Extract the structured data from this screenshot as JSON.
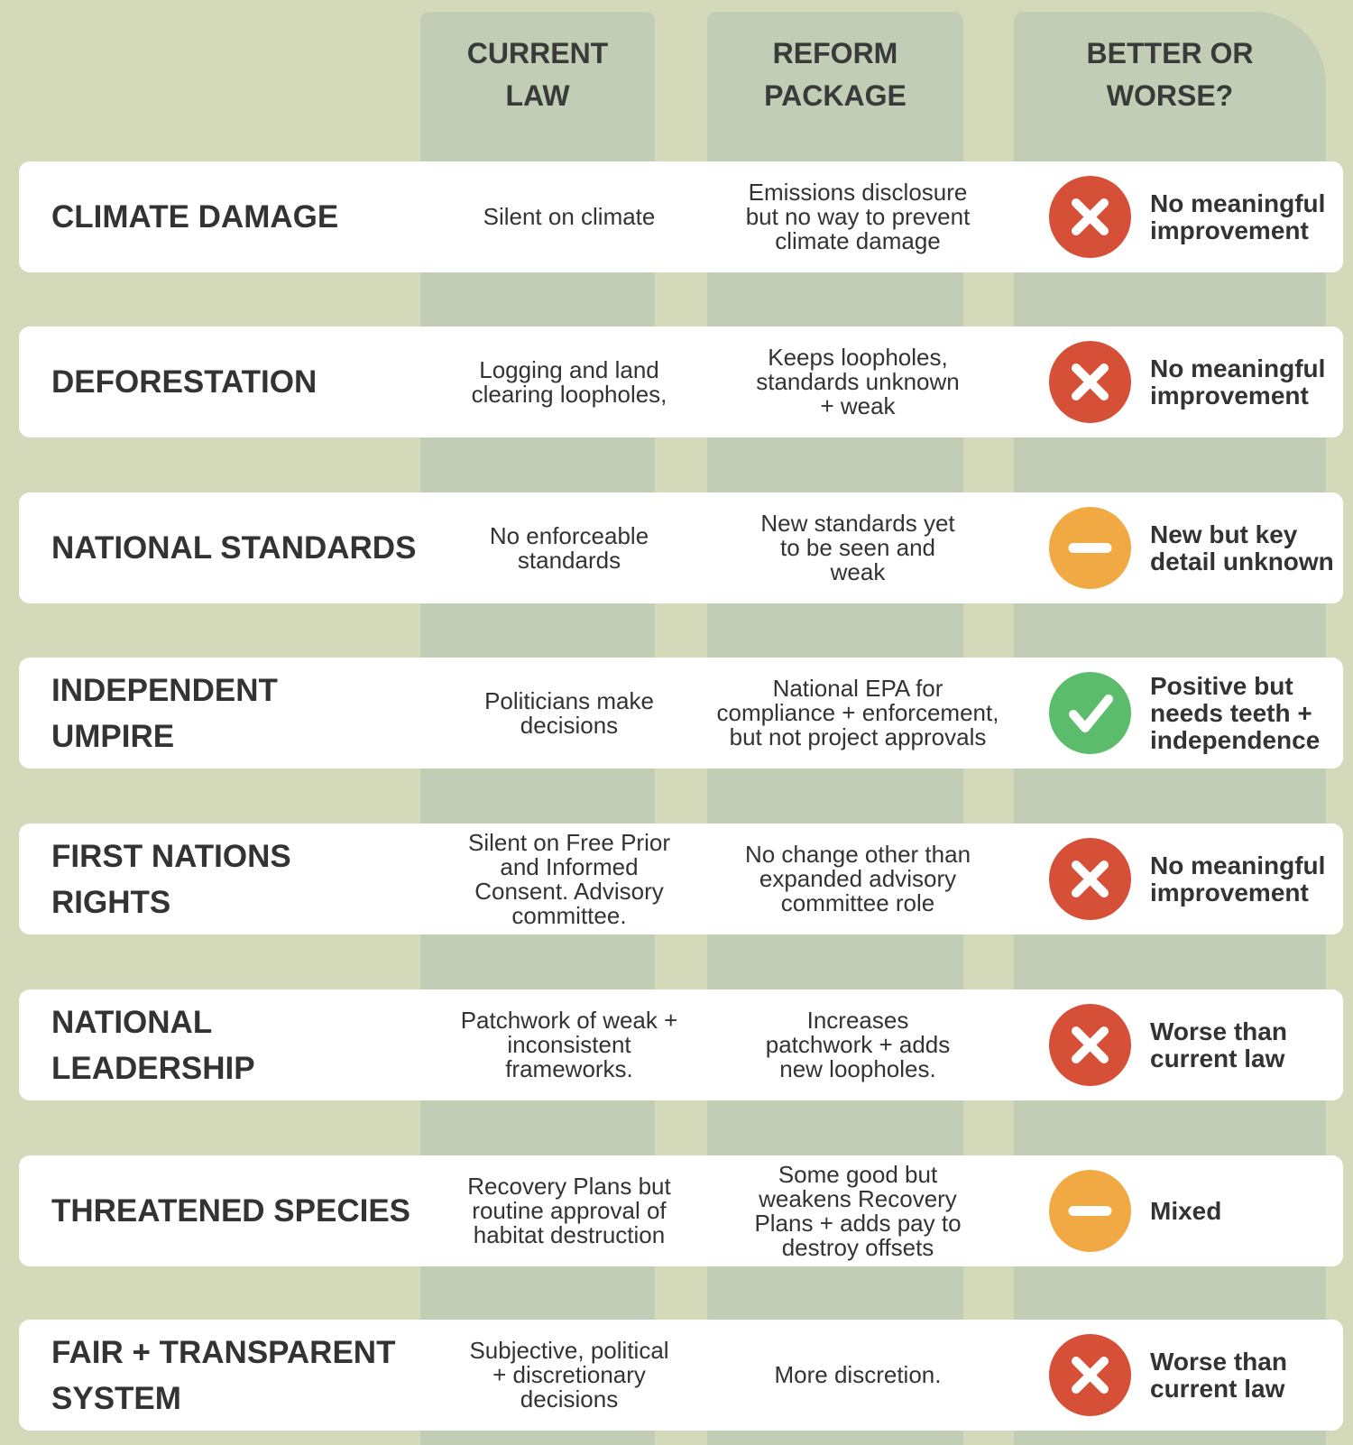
{
  "colors": {
    "background": "#d4d9b9",
    "column": "#c1cdb4",
    "worse": "#d64f37",
    "mixed": "#f0a943",
    "better": "#5bbd6b"
  },
  "headers": {
    "current": "CURRENT\nLAW",
    "reform": "REFORM\nPACKAGE",
    "verdict": "BETTER OR\nWORSE?"
  },
  "rows": [
    {
      "title": "CLIMATE DAMAGE",
      "current": "Silent on climate",
      "reform": "Emissions disclosure\nbut no way to prevent\nclimate damage",
      "icon": "x-circle-icon",
      "status": "worse",
      "verdict": "No meaningful\nimprovement"
    },
    {
      "title": "DEFORESTATION",
      "current": "Logging and land\nclearing loopholes,",
      "reform": "Keeps loopholes,\nstandards unknown\n+ weak",
      "icon": "x-circle-icon",
      "status": "worse",
      "verdict": "No meaningful\nimprovement"
    },
    {
      "title": "NATIONAL STANDARDS",
      "current": "No enforceable\nstandards",
      "reform": "New standards yet\nto be seen and\nweak",
      "icon": "minus-circle-icon",
      "status": "mixed",
      "verdict": "New but key\ndetail unknown"
    },
    {
      "title": "INDEPENDENT\nUMPIRE",
      "current": "Politicians make\ndecisions",
      "reform": "National EPA for\ncompliance + enforcement,\nbut not project approvals",
      "icon": "check-circle-icon",
      "status": "better",
      "verdict": "Positive but\nneeds teeth +\nindependence"
    },
    {
      "title": "FIRST NATIONS\nRIGHTS",
      "current": "Silent on Free Prior\nand Informed\nConsent. Advisory\ncommittee.",
      "reform": "No change other than\nexpanded advisory\ncommittee role",
      "icon": "x-circle-icon",
      "status": "worse",
      "verdict": "No meaningful\nimprovement"
    },
    {
      "title": "NATIONAL\nLEADERSHIP",
      "current": "Patchwork of weak +\ninconsistent\nframeworks.",
      "reform": "Increases\npatchwork + adds\nnew loopholes.",
      "icon": "x-circle-icon",
      "status": "worse",
      "verdict": "Worse than\ncurrent law"
    },
    {
      "title": "THREATENED SPECIES",
      "current": "Recovery Plans but\nroutine approval of\nhabitat destruction",
      "reform": "Some good but\nweakens Recovery\nPlans + adds pay to\ndestroy offsets",
      "icon": "minus-circle-icon",
      "status": "mixed",
      "verdict": "Mixed"
    },
    {
      "title": "FAIR + TRANSPARENT\nSYSTEM",
      "current": "Subjective, political\n+ discretionary\ndecisions",
      "reform": "More discretion.",
      "icon": "x-circle-icon",
      "status": "worse",
      "verdict": "Worse than\ncurrent law"
    }
  ]
}
